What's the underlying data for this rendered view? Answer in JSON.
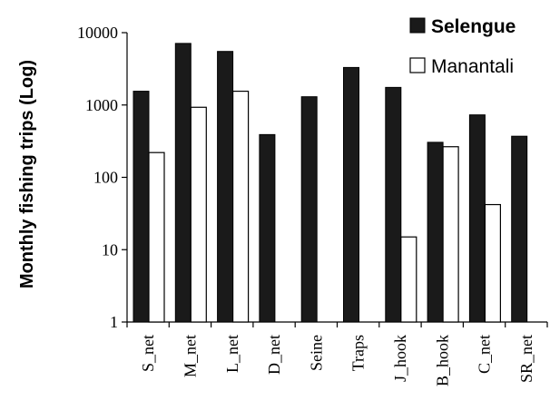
{
  "chart_data": {
    "type": "bar",
    "ylabel": "Monthly fishing trips (Log)",
    "xlabel": "",
    "yscale": "log",
    "ylim": [
      1,
      10000
    ],
    "yticks": [
      "1",
      "10",
      "100",
      "1000",
      "10000"
    ],
    "categories": [
      "S_net",
      "M_net",
      "L_net",
      "D_net",
      "Seine",
      "Traps",
      "J_hook",
      "B_hook",
      "C_net",
      "SR_net"
    ],
    "series": [
      {
        "name": "Selengue",
        "color": "#1a1a1a",
        "values": [
          1550,
          7100,
          5500,
          390,
          1300,
          3300,
          1750,
          305,
          730,
          370
        ]
      },
      {
        "name": "Manantali",
        "color": "#ffffff",
        "values": [
          220,
          930,
          1550,
          null,
          null,
          null,
          15,
          265,
          42,
          null
        ]
      }
    ],
    "legend": "top-right",
    "grid": false
  }
}
